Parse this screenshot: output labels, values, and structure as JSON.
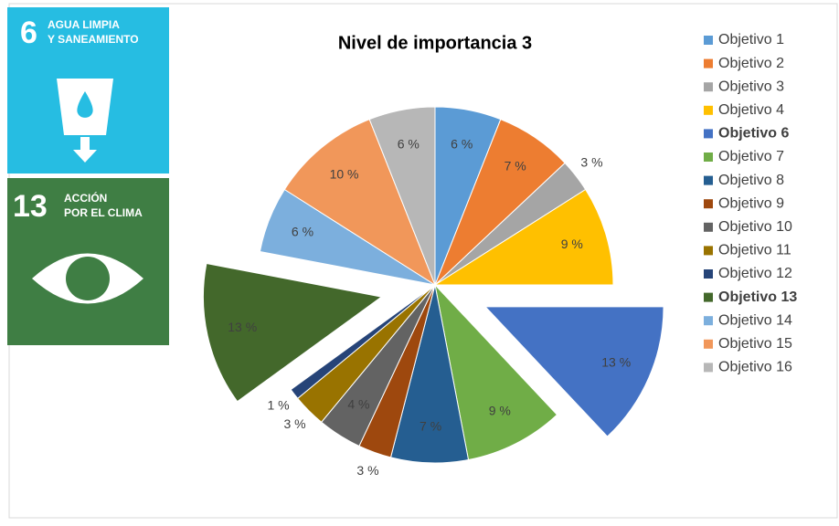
{
  "icons": {
    "water": {
      "number": "6",
      "line1": "AGUA LIMPIA",
      "line2": "Y SANEAMIENTO"
    },
    "climate": {
      "number": "13",
      "line1": "ACCIÓN",
      "line2": "POR EL CLIMA"
    }
  },
  "chart_data": {
    "type": "pie",
    "title": "Nivel de importancia 3",
    "categories": [
      "Objetivo 1",
      "Objetivo 2",
      "Objetivo 3",
      "Objetivo 4",
      "Objetivo 6",
      "Objetivo 7",
      "Objetivo 8",
      "Objetivo 9",
      "Objetivo 10",
      "Objetivo 11",
      "Objetivo 12",
      "Objetivo 13",
      "Objetivo 14",
      "Objetivo 15",
      "Objetivo 16"
    ],
    "values": [
      6,
      7,
      3,
      9,
      13,
      9,
      7,
      3,
      4,
      3,
      1,
      13,
      6,
      10,
      6
    ],
    "value_labels": [
      "6 %",
      "7 %",
      "3 %",
      "9 %",
      "13 %",
      "9 %",
      "7 %",
      "3 %",
      "4 %",
      "3 %",
      "1 %",
      "13 %",
      "6 %",
      "10 %",
      "6 %"
    ],
    "colors": [
      "#5b9bd5",
      "#ed7d31",
      "#a5a5a5",
      "#ffc000",
      "#4472c4",
      "#70ad47",
      "#255e91",
      "#9e480e",
      "#636363",
      "#997300",
      "#264478",
      "#43682b",
      "#7cafdd",
      "#f1975a",
      "#b7b7b7"
    ],
    "exploded": [
      false,
      false,
      false,
      false,
      true,
      false,
      false,
      false,
      false,
      false,
      false,
      true,
      false,
      false,
      false
    ],
    "legend": "right"
  }
}
